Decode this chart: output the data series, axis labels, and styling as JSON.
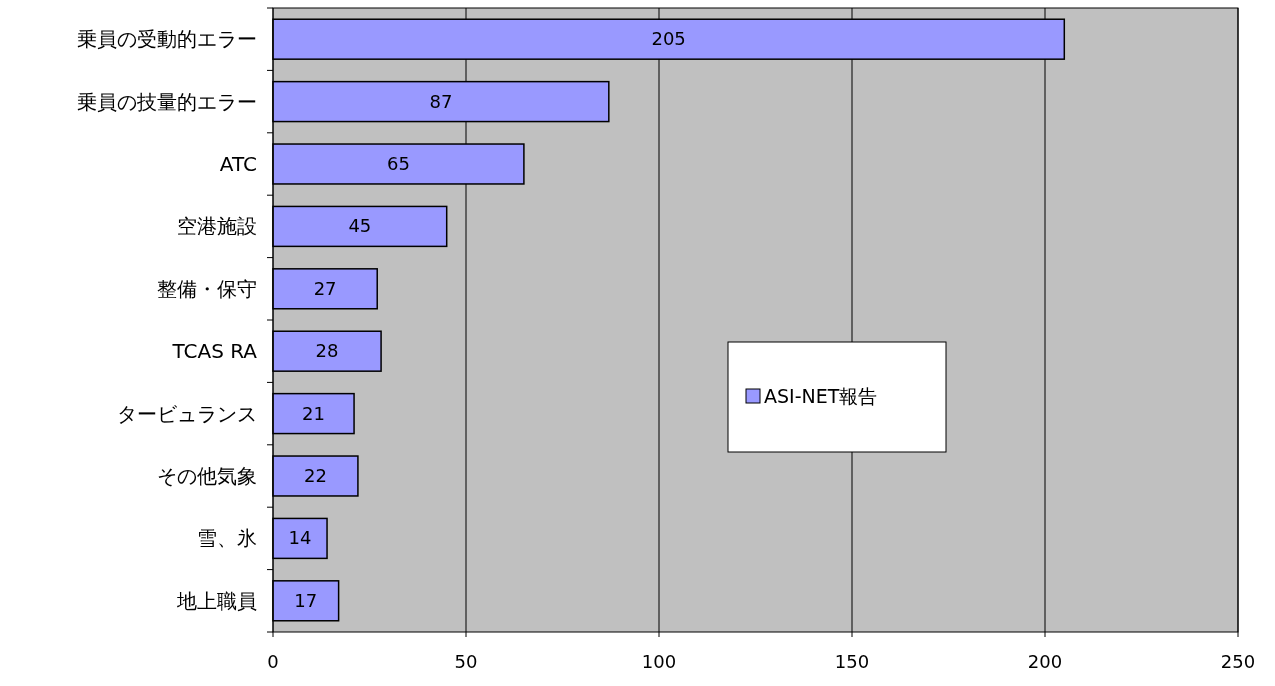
{
  "chart_data": {
    "type": "bar",
    "orientation": "horizontal",
    "categories": [
      "乗員の受動的エラー",
      "乗員の技量的エラー",
      "ATC",
      "空港施設",
      "整備・保守",
      "TCAS RA",
      "タービュランス",
      "その他気象",
      "雪、氷",
      "地上職員"
    ],
    "series": [
      {
        "name": "ASI-NET報告",
        "color": "#9999ff",
        "values": [
          205,
          87,
          65,
          45,
          27,
          28,
          21,
          22,
          14,
          17
        ]
      }
    ],
    "xlim": [
      0,
      250
    ],
    "xticks": [
      0,
      50,
      100,
      150,
      200,
      250
    ],
    "grid": "x",
    "data_labels": true,
    "legend": "right"
  }
}
